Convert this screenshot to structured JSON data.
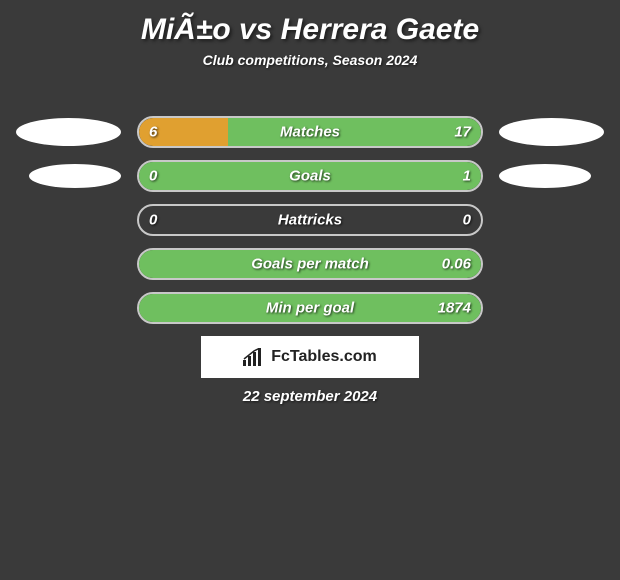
{
  "title": "MiÃ±o vs Herrera Gaete",
  "subtitle": "Club competitions, Season 2024",
  "colors": {
    "left": "#e0a030",
    "right": "#6fbf5f",
    "background": "#3a3a3a",
    "border": "#c8c8c8",
    "ellipse": "#ffffff"
  },
  "rows": [
    {
      "label": "Matches",
      "leftVal": "6",
      "rightVal": "17",
      "leftPct": 26,
      "rightPct": 74,
      "showEllipses": true,
      "ellipseSmall": false
    },
    {
      "label": "Goals",
      "leftVal": "0",
      "rightVal": "1",
      "leftPct": 0,
      "rightPct": 100,
      "showEllipses": true,
      "ellipseSmall": true
    },
    {
      "label": "Hattricks",
      "leftVal": "0",
      "rightVal": "0",
      "leftPct": 0,
      "rightPct": 0,
      "showEllipses": false
    },
    {
      "label": "Goals per match",
      "leftVal": "",
      "rightVal": "0.06",
      "leftPct": 0,
      "rightPct": 100,
      "showEllipses": false
    },
    {
      "label": "Min per goal",
      "leftVal": "",
      "rightVal": "1874",
      "leftPct": 0,
      "rightPct": 100,
      "showEllipses": false
    }
  ],
  "brand": "FcTables.com",
  "date": "22 september 2024"
}
